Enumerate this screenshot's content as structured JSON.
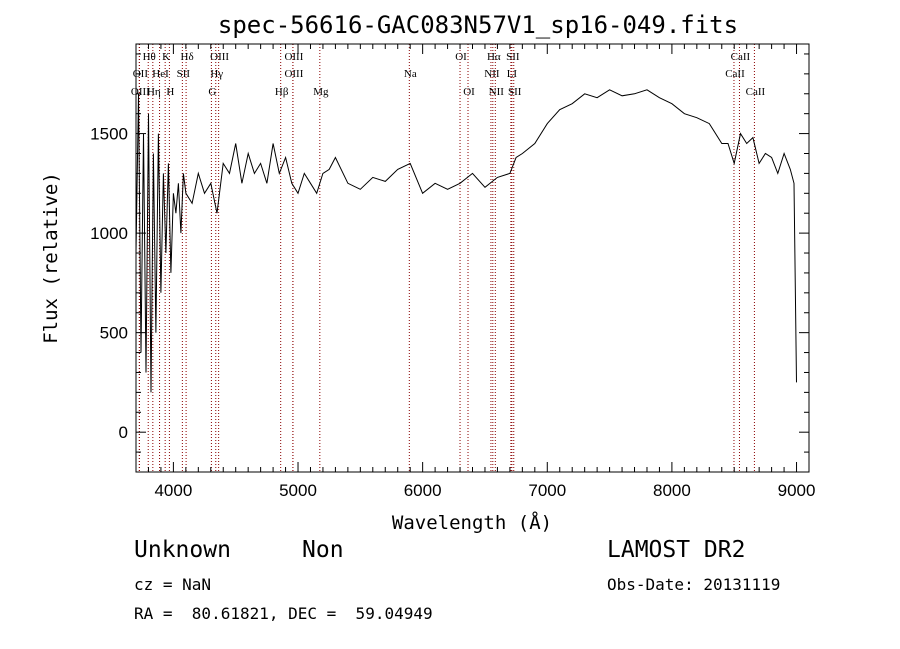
{
  "chart_data": {
    "type": "line",
    "title": "spec-56616-GAC083N57V1_sp16-049.fits",
    "xlabel": "Wavelength (Å)",
    "ylabel": "Flux (relative)",
    "xlim": [
      3700,
      9100
    ],
    "ylim": [
      -200,
      1950
    ],
    "xticks": [
      4000,
      5000,
      6000,
      7000,
      8000,
      9000
    ],
    "yticks": [
      0,
      500,
      1000,
      1500
    ],
    "x_tick_labels": [
      "4000",
      "5000",
      "6000",
      "7000",
      "8000",
      "9000"
    ],
    "y_tick_labels": [
      "0",
      "500",
      "1000",
      "1500"
    ],
    "line_color": "#000000",
    "marker_color": "#8b0000",
    "series": [
      {
        "x": [
          3700,
          3720,
          3740,
          3760,
          3780,
          3800,
          3820,
          3840,
          3860,
          3880,
          3900,
          3920,
          3940,
          3960,
          3980,
          4000,
          4020,
          4040,
          4060,
          4080,
          4100,
          4150,
          4200,
          4250,
          4300,
          4350,
          4400,
          4450,
          4500,
          4550,
          4600,
          4650,
          4700,
          4750,
          4800,
          4850,
          4900,
          4950,
          5000,
          5050,
          5100,
          5150,
          5200,
          5250,
          5300,
          5400,
          5500,
          5600,
          5700,
          5800,
          5900,
          6000,
          6100,
          6200,
          6300,
          6400,
          6500,
          6600,
          6700,
          6750,
          6800,
          6900,
          7000,
          7100,
          7200,
          7300,
          7400,
          7500,
          7600,
          7700,
          7800,
          7900,
          8000,
          8100,
          8200,
          8300,
          8400,
          8450,
          8500,
          8550,
          8600,
          8650,
          8700,
          8750,
          8800,
          8850,
          8900,
          8950,
          8980,
          9000
        ],
        "y": [
          900,
          1700,
          400,
          1500,
          300,
          1600,
          200,
          1400,
          500,
          1500,
          700,
          1300,
          900,
          1350,
          800,
          1200,
          1100,
          1250,
          1000,
          1300,
          1200,
          1150,
          1300,
          1200,
          1250,
          1100,
          1350,
          1300,
          1450,
          1250,
          1400,
          1300,
          1350,
          1250,
          1450,
          1300,
          1380,
          1250,
          1200,
          1300,
          1250,
          1200,
          1300,
          1320,
          1380,
          1250,
          1220,
          1280,
          1260,
          1320,
          1350,
          1200,
          1250,
          1220,
          1250,
          1300,
          1230,
          1280,
          1300,
          1380,
          1400,
          1450,
          1550,
          1620,
          1650,
          1700,
          1680,
          1720,
          1690,
          1700,
          1720,
          1680,
          1650,
          1600,
          1580,
          1550,
          1450,
          1450,
          1350,
          1500,
          1450,
          1480,
          1350,
          1400,
          1380,
          1300,
          1400,
          1320,
          1250,
          250
        ]
      }
    ],
    "lines": [
      {
        "name": "Hθ",
        "x": 3798,
        "row": 0
      },
      {
        "name": "K",
        "x": 3934,
        "row": 0
      },
      {
        "name": "Hδ",
        "x": 4102,
        "row": 0
      },
      {
        "name": "OIII",
        "x": 4363,
        "row": 0
      },
      {
        "name": "OIII",
        "x": 4959,
        "row": 0
      },
      {
        "name": "OI",
        "x": 6300,
        "row": 0
      },
      {
        "name": "Hα",
        "x": 6563,
        "row": 0
      },
      {
        "name": "SII",
        "x": 6716,
        "row": 0
      },
      {
        "name": "CaII",
        "x": 8542,
        "row": 0
      },
      {
        "name": "OII",
        "x": 3727,
        "row": 1
      },
      {
        "name": "HeI",
        "x": 3889,
        "row": 1
      },
      {
        "name": "SII",
        "x": 4072,
        "row": 1
      },
      {
        "name": "Hγ",
        "x": 4340,
        "row": 1
      },
      {
        "name": "OIII",
        "x": 4959,
        "row": 1
      },
      {
        "name": "Na",
        "x": 5893,
        "row": 1
      },
      {
        "name": "NII",
        "x": 6548,
        "row": 1
      },
      {
        "name": "LI",
        "x": 6708,
        "row": 1
      },
      {
        "name": "CaII",
        "x": 8498,
        "row": 1
      },
      {
        "name": "OIII",
        "x": 3727,
        "row": 2
      },
      {
        "name": "Hη",
        "x": 3835,
        "row": 2
      },
      {
        "name": "H",
        "x": 3968,
        "row": 2
      },
      {
        "name": "G",
        "x": 4305,
        "row": 2
      },
      {
        "name": "Hβ",
        "x": 4861,
        "row": 2
      },
      {
        "name": "Mg",
        "x": 5175,
        "row": 2
      },
      {
        "name": "OI",
        "x": 6364,
        "row": 2
      },
      {
        "name": "NII",
        "x": 6583,
        "row": 2
      },
      {
        "name": "SII",
        "x": 6731,
        "row": 2
      },
      {
        "name": "CaII",
        "x": 8662,
        "row": 2
      }
    ]
  },
  "info": {
    "class_label": "Unknown",
    "subclass_label": "Non",
    "survey": "LAMOST DR2",
    "cz": "cz = NaN",
    "obs_date": "Obs-Date: 20131119",
    "coords": "RA =  80.61821, DEC =  59.04949"
  }
}
